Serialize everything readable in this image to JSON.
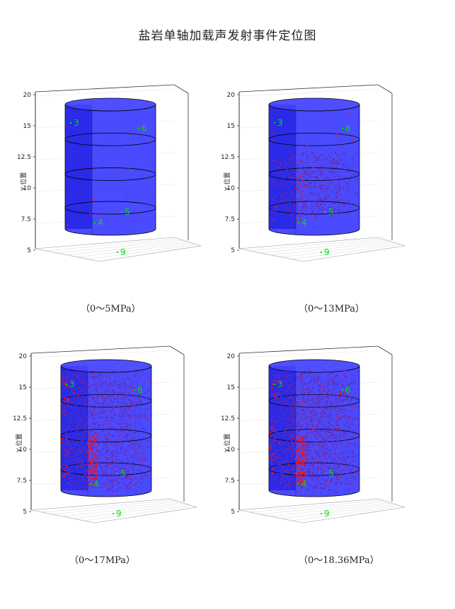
{
  "page": {
    "title": "盐岩单轴加载声发射事件定位图"
  },
  "colors": {
    "cylinder": "#2a2aff",
    "cylinder_dark": "#1515d8",
    "event": "#6a2aa8",
    "event_red": "#ff1010",
    "sensor": "#00e000",
    "frame": "#333333"
  },
  "panels": [
    {
      "caption": "（0～5MPa）",
      "stage_MPa": [
        0,
        5
      ],
      "chart_data": {
        "type": "scatter",
        "title": "",
        "ylabel": "Y 位置",
        "y_ticks": [
          "5",
          "7.5",
          "10",
          "12.5",
          "15",
          "20"
        ],
        "sensors": [
          "3",
          "6",
          "4",
          "5",
          "9"
        ],
        "event_density": "low",
        "purple_events": 25,
        "red_events": 4
      }
    },
    {
      "caption": "（0～13MPa）",
      "stage_MPa": [
        0,
        13
      ],
      "chart_data": {
        "type": "scatter",
        "title": "",
        "ylabel": "Y 位置",
        "y_ticks": [
          "5",
          "7.5",
          "10",
          "12.5",
          "15",
          "20"
        ],
        "sensors": [
          "3",
          "6",
          "4",
          "5",
          "9"
        ],
        "event_density": "medium",
        "purple_events": 700,
        "red_events": 40
      }
    },
    {
      "caption": "（0～17MPa）",
      "stage_MPa": [
        0,
        17
      ],
      "chart_data": {
        "type": "scatter",
        "title": "",
        "ylabel": "Y 位置",
        "y_ticks": [
          "5",
          "7.5",
          "10",
          "12.5",
          "15",
          "20"
        ],
        "sensors": [
          "3",
          "6",
          "4",
          "5",
          "9"
        ],
        "event_density": "high",
        "purple_events": 1500,
        "red_events": 160
      }
    },
    {
      "caption": "（0～18.36MPa）",
      "stage_MPa": [
        0,
        18.36
      ],
      "chart_data": {
        "type": "scatter",
        "title": "",
        "ylabel": "Y 位置",
        "y_ticks": [
          "5",
          "7.5",
          "10",
          "12.5",
          "15",
          "20"
        ],
        "sensors": [
          "3",
          "6",
          "4",
          "5",
          "9"
        ],
        "event_density": "very high",
        "purple_events": 1900,
        "red_events": 190
      }
    }
  ]
}
